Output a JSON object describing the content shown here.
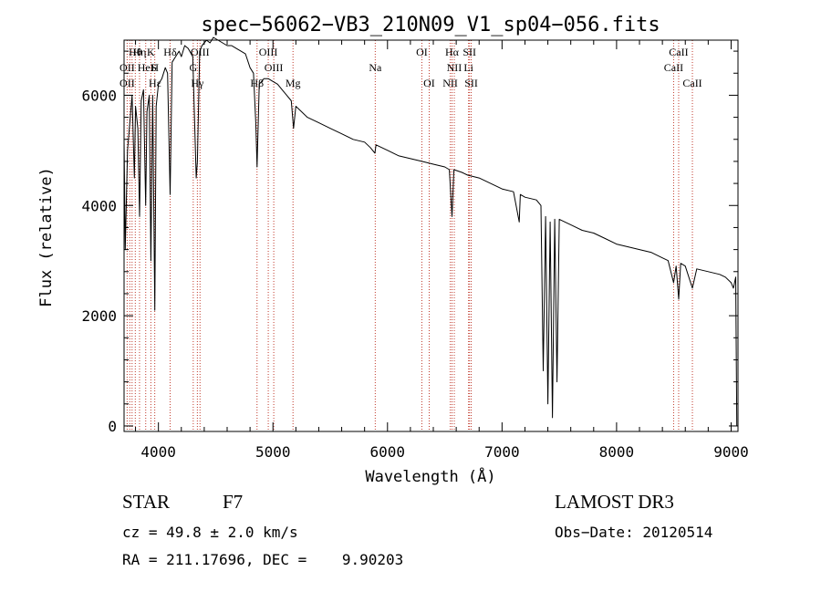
{
  "chart_data": {
    "type": "line",
    "title": "spec−56062−VB3_210N09_V1_sp04−056.fits",
    "xlabel": "Wavelength (Å)",
    "ylabel": "Flux (relative)",
    "xlim": [
      3700,
      9060
    ],
    "ylim": [
      -100,
      7000
    ],
    "x_ticks": [
      4000,
      5000,
      6000,
      7000,
      8000,
      9000
    ],
    "y_ticks": [
      0,
      2000,
      4000,
      6000
    ],
    "series": [
      {
        "name": "flux",
        "x": [
          3700,
          3710,
          3730,
          3750,
          3770,
          3790,
          3800,
          3820,
          3835,
          3850,
          3870,
          3889,
          3900,
          3920,
          3934,
          3950,
          3968,
          3980,
          4000,
          4030,
          4060,
          4080,
          4102,
          4120,
          4150,
          4180,
          4200,
          4230,
          4260,
          4300,
          4330,
          4340,
          4360,
          4380,
          4420,
          4450,
          4480,
          4520,
          4560,
          4600,
          4640,
          4680,
          4720,
          4760,
          4800,
          4830,
          4850,
          4861,
          4880,
          4920,
          4960,
          5000,
          5040,
          5080,
          5120,
          5160,
          5180,
          5200,
          5250,
          5300,
          5400,
          5500,
          5600,
          5700,
          5800,
          5850,
          5890,
          5900,
          5950,
          6000,
          6100,
          6200,
          6300,
          6400,
          6500,
          6540,
          6563,
          6580,
          6650,
          6700,
          6800,
          6900,
          7000,
          7100,
          7150,
          7160,
          7200,
          7300,
          7340,
          7360,
          7380,
          7400,
          7420,
          7440,
          7460,
          7480,
          7500,
          7600,
          7700,
          7800,
          7900,
          8000,
          8100,
          8200,
          8300,
          8400,
          8450,
          8498,
          8520,
          8542,
          8560,
          8600,
          8662,
          8700,
          8800,
          8900,
          8950,
          9000,
          9020,
          9040,
          9050
        ],
        "values": [
          5200,
          3200,
          5000,
          5500,
          6000,
          4500,
          5800,
          5400,
          3800,
          5900,
          6100,
          4000,
          5700,
          6000,
          3000,
          6000,
          2100,
          5800,
          6200,
          6300,
          6500,
          6400,
          4200,
          6600,
          6700,
          6800,
          6700,
          6900,
          6850,
          6700,
          4500,
          4800,
          6800,
          6900,
          7000,
          6950,
          7050,
          7000,
          6950,
          6900,
          6900,
          6850,
          6800,
          6750,
          6500,
          6400,
          5500,
          4700,
          6200,
          6300,
          6300,
          6250,
          6200,
          6100,
          6000,
          5900,
          5400,
          5800,
          5700,
          5600,
          5500,
          5400,
          5300,
          5200,
          5150,
          5050,
          4950,
          5100,
          5050,
          5000,
          4900,
          4850,
          4800,
          4750,
          4700,
          4650,
          3800,
          4650,
          4600,
          4550,
          4500,
          4400,
          4300,
          4250,
          3700,
          4200,
          4150,
          4100,
          4000,
          1000,
          3800,
          400,
          3700,
          150,
          3750,
          800,
          3750,
          3650,
          3550,
          3500,
          3400,
          3300,
          3250,
          3200,
          3150,
          3050,
          3000,
          2600,
          2900,
          2300,
          2950,
          2900,
          2500,
          2850,
          2800,
          2750,
          2700,
          2600,
          2500,
          2700,
          0
        ]
      }
    ],
    "line_markers": [
      {
        "label": "Hθ",
        "x": 3798,
        "row": 0
      },
      {
        "label": "Hη",
        "x": 3835,
        "row": 0
      },
      {
        "label": "K",
        "x": 3934,
        "row": 0
      },
      {
        "label": "Hδ",
        "x": 4102,
        "row": 0
      },
      {
        "label": "OIII",
        "x": 4363,
        "row": 0
      },
      {
        "label": "OIII",
        "x": 4959,
        "row": 0
      },
      {
        "label": "OI",
        "x": 6300,
        "row": 0
      },
      {
        "label": "Hα",
        "x": 6563,
        "row": 0
      },
      {
        "label": "SII",
        "x": 6716,
        "row": 0
      },
      {
        "label": "CaII",
        "x": 8542,
        "row": 0
      },
      {
        "label": "OII",
        "x": 3727,
        "row": 1
      },
      {
        "label": "HeI",
        "x": 3889,
        "row": 1
      },
      {
        "label": "S",
        "x": 3960,
        "row": 1
      },
      {
        "label": "H",
        "x": 3968,
        "row": 1
      },
      {
        "label": "G",
        "x": 4304,
        "row": 1
      },
      {
        "label": "OIII",
        "x": 5007,
        "row": 1
      },
      {
        "label": "Na",
        "x": 5893,
        "row": 1
      },
      {
        "label": "NII",
        "x": 6583,
        "row": 1
      },
      {
        "label": "Li",
        "x": 6708,
        "row": 1
      },
      {
        "label": "CaII",
        "x": 8498,
        "row": 1
      },
      {
        "label": "OII",
        "x": 3727,
        "row": 2
      },
      {
        "label": "Hε",
        "x": 3970,
        "row": 2
      },
      {
        "label": "Hγ",
        "x": 4340,
        "row": 2
      },
      {
        "label": "Hβ",
        "x": 4861,
        "row": 2
      },
      {
        "label": "Mg",
        "x": 5175,
        "row": 2
      },
      {
        "label": "OI",
        "x": 6364,
        "row": 2
      },
      {
        "label": "NII",
        "x": 6548,
        "row": 2
      },
      {
        "label": "SII",
        "x": 6731,
        "row": 2
      },
      {
        "label": "CaII",
        "x": 8662,
        "row": 2
      }
    ],
    "marker_lines": [
      3727,
      3750,
      3770,
      3798,
      3835,
      3889,
      3934,
      3968,
      4102,
      4304,
      4340,
      4363,
      4861,
      4959,
      5007,
      5175,
      5893,
      6300,
      6364,
      6548,
      6563,
      6583,
      6708,
      6716,
      6731,
      8498,
      8542,
      8662
    ]
  },
  "info": {
    "object_type": "STAR",
    "subclass": "F7",
    "survey": "LAMOST DR3",
    "cz": "cz = 49.8 ± 2.0 km/s",
    "obs_date": "Obs−Date: 20120514",
    "coords": "RA = 211.17696, DEC =    9.90203"
  },
  "colors": {
    "axis": "#000000",
    "spectrum": "#000000",
    "marker_line": "#c0392b",
    "background": "#ffffff"
  }
}
